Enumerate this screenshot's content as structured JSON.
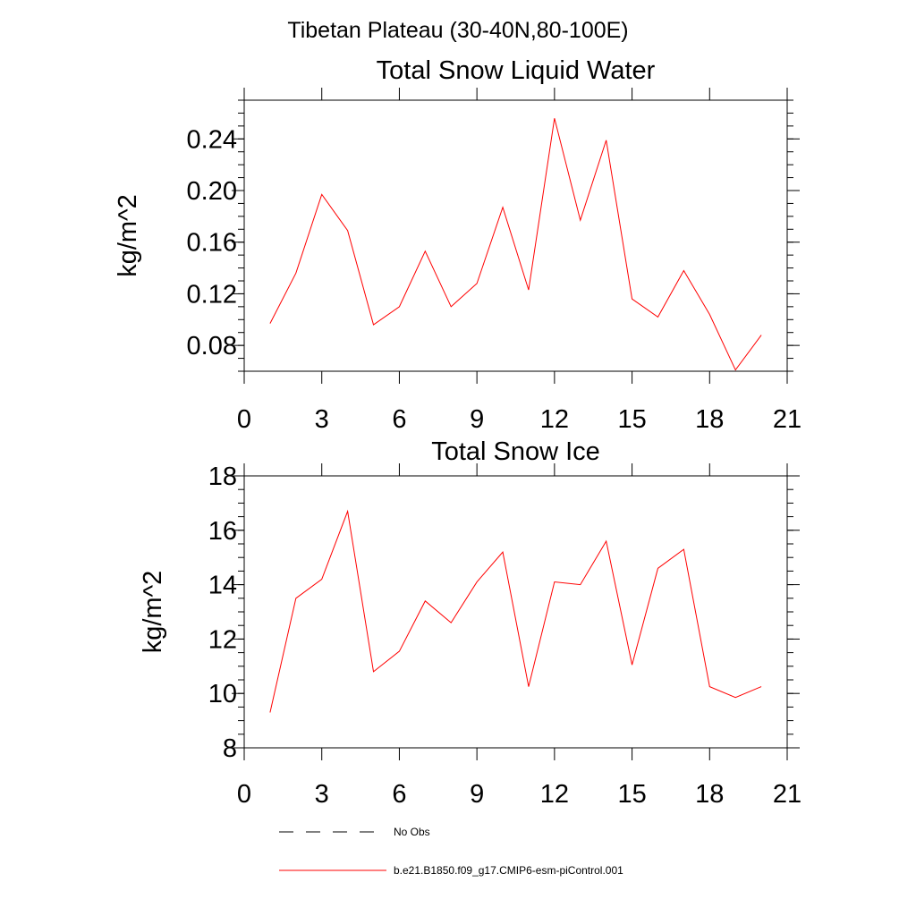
{
  "main_title": "Tibetan Plateau (30-40N,80-100E)",
  "colors": {
    "model": "#ff0000",
    "obs": "#000000"
  },
  "chart_data": [
    {
      "type": "line",
      "title": "Total Snow Liquid Water",
      "xlabel": "",
      "ylabel": "kg/m^2",
      "xlim": [
        0,
        21
      ],
      "ylim": [
        0.06,
        0.27
      ],
      "x_ticks": [
        0,
        3,
        6,
        9,
        12,
        15,
        18,
        21
      ],
      "x_tick_labels": [
        "0",
        "3",
        "6",
        "9",
        "12",
        "15",
        "18",
        "21"
      ],
      "y_ticks": [
        0.08,
        0.12,
        0.16,
        0.2,
        0.24
      ],
      "y_tick_labels": [
        "0.08",
        "0.12",
        "0.16",
        "0.20",
        "0.24"
      ],
      "y_minor_step": 0.01,
      "x": [
        1,
        2,
        3,
        4,
        5,
        6,
        7,
        8,
        9,
        10,
        11,
        12,
        13,
        14,
        15,
        16,
        17,
        18,
        19,
        20
      ],
      "series": [
        {
          "name": "b.e21.B1850.f09_g17.CMIP6-esm-piControl.001",
          "color": "#ff0000",
          "values": [
            0.097,
            0.136,
            0.197,
            0.169,
            0.096,
            0.11,
            0.153,
            0.11,
            0.128,
            0.187,
            0.123,
            0.256,
            0.177,
            0.239,
            0.116,
            0.102,
            0.138,
            0.104,
            0.061,
            0.088
          ]
        }
      ]
    },
    {
      "type": "line",
      "title": "Total Snow Ice",
      "xlabel": "",
      "ylabel": "kg/m^2",
      "xlim": [
        0,
        21
      ],
      "ylim": [
        8,
        18
      ],
      "x_ticks": [
        0,
        3,
        6,
        9,
        12,
        15,
        18,
        21
      ],
      "x_tick_labels": [
        "0",
        "3",
        "6",
        "9",
        "12",
        "15",
        "18",
        "21"
      ],
      "y_ticks": [
        8,
        10,
        12,
        14,
        16,
        18
      ],
      "y_tick_labels": [
        "8",
        "10",
        "12",
        "14",
        "16",
        "18"
      ],
      "y_minor_step": 0.5,
      "x": [
        1,
        2,
        3,
        4,
        5,
        6,
        7,
        8,
        9,
        10,
        11,
        12,
        13,
        14,
        15,
        16,
        17,
        18,
        19,
        20
      ],
      "series": [
        {
          "name": "b.e21.B1850.f09_g17.CMIP6-esm-piControl.001",
          "color": "#ff0000",
          "values": [
            9.3,
            13.5,
            14.2,
            16.7,
            10.8,
            11.55,
            13.4,
            12.6,
            14.1,
            15.2,
            10.25,
            14.1,
            14.0,
            15.6,
            11.05,
            14.6,
            15.3,
            10.25,
            9.85,
            10.25
          ]
        }
      ]
    }
  ],
  "legend": {
    "placement": "bottom-left",
    "entries": [
      {
        "label": "No Obs",
        "style": "dashed",
        "color": "#000000"
      },
      {
        "label": "b.e21.B1850.f09_g17.CMIP6-esm-piControl.001",
        "style": "solid",
        "color": "#ff0000"
      }
    ]
  }
}
